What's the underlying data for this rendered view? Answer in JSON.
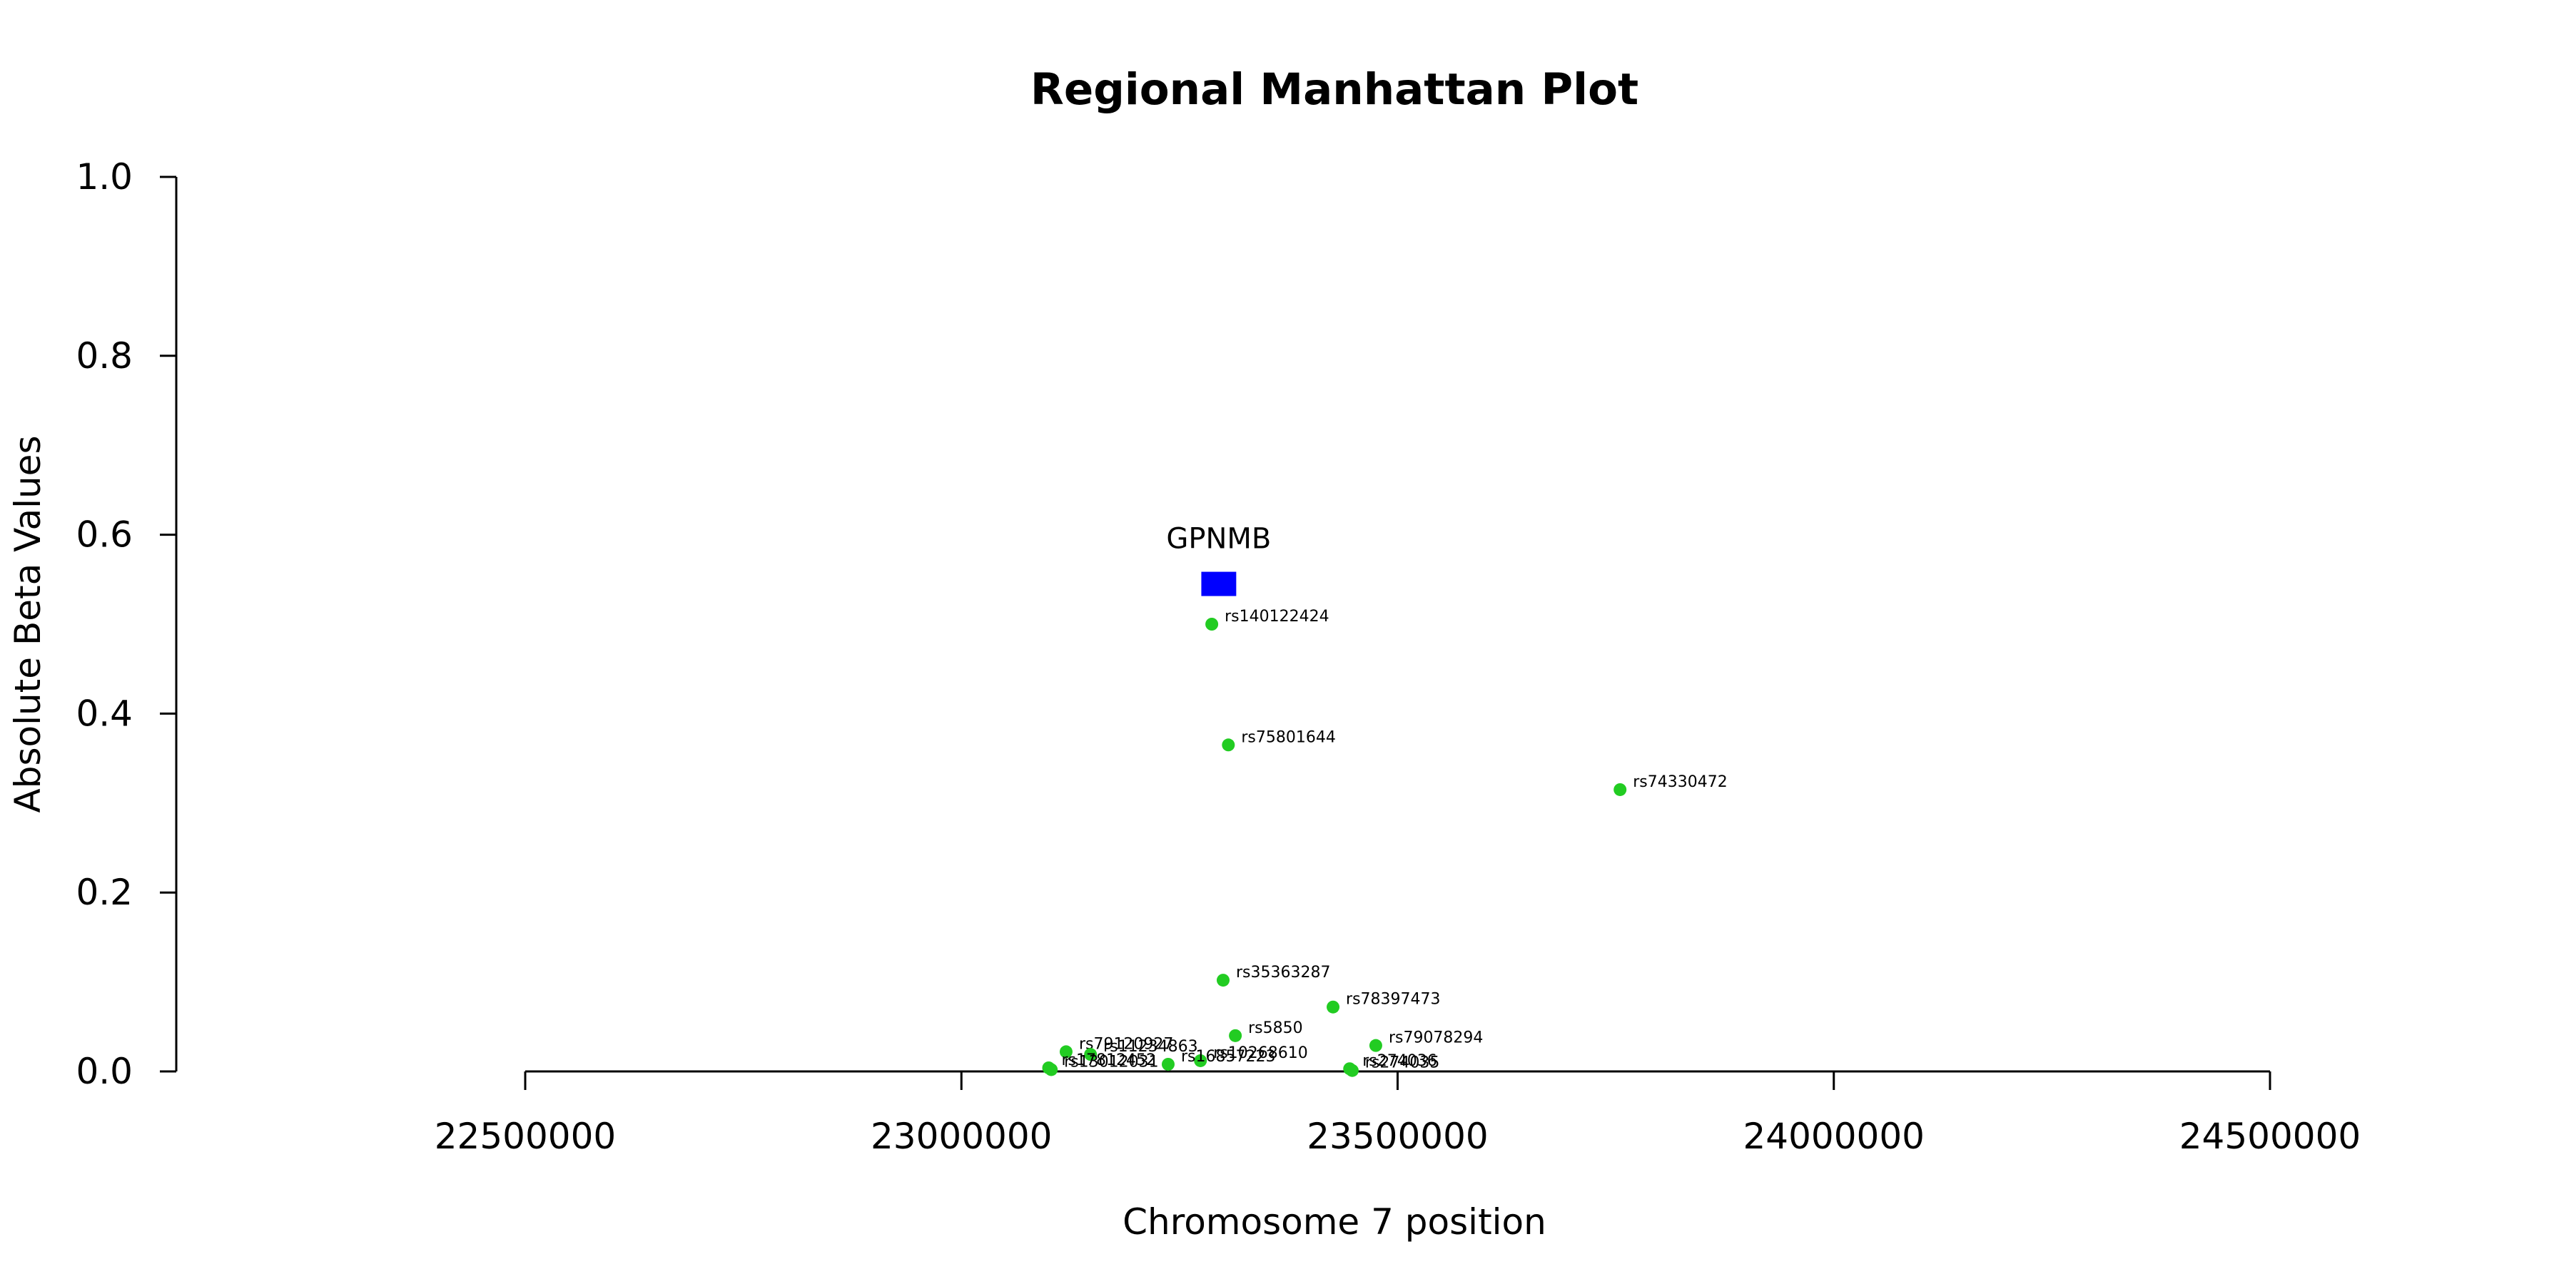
{
  "chart_data": {
    "type": "scatter",
    "title": "Regional Manhattan Plot",
    "xlabel": "Chromosome 7 position",
    "ylabel": "Absolute Beta Values",
    "xlim": [
      22100000,
      24600000
    ],
    "ylim": [
      0,
      1.0
    ],
    "x_ticks": [
      22500000,
      23000000,
      23500000,
      24000000,
      24500000
    ],
    "x_tick_labels": [
      "22500000",
      "23000000",
      "23500000",
      "24000000",
      "24500000"
    ],
    "y_ticks": [
      0.0,
      0.2,
      0.4,
      0.6,
      0.8,
      1.0
    ],
    "y_tick_labels": [
      "0.0",
      "0.2",
      "0.4",
      "0.6",
      "0.8",
      "1.0"
    ],
    "grid": false,
    "point_color": "#22cc22",
    "gene": {
      "name": "GPNMB",
      "start": 23275000,
      "end": 23315000,
      "y": 0.545,
      "color": "#0000ff"
    },
    "points": [
      {
        "x": 23287000,
        "y": 0.5,
        "label": "rs140122424"
      },
      {
        "x": 23306000,
        "y": 0.365,
        "label": "rs75801644"
      },
      {
        "x": 23755000,
        "y": 0.315,
        "label": "rs74330472"
      },
      {
        "x": 23300000,
        "y": 0.102,
        "label": "rs35363287"
      },
      {
        "x": 23426000,
        "y": 0.072,
        "label": "rs78397473"
      },
      {
        "x": 23314000,
        "y": 0.04,
        "label": "rs5850"
      },
      {
        "x": 23475000,
        "y": 0.029,
        "label": "rs79078294"
      },
      {
        "x": 23120000,
        "y": 0.022,
        "label": "rs79120927"
      },
      {
        "x": 23148000,
        "y": 0.019,
        "label": "rs11234863"
      },
      {
        "x": 23274000,
        "y": 0.012,
        "label": "rs10268610"
      },
      {
        "x": 23237000,
        "y": 0.008,
        "label": "rs16857223"
      },
      {
        "x": 23100000,
        "y": 0.004,
        "label": "rs17812452"
      },
      {
        "x": 23103000,
        "y": 0.002,
        "label": "rs13012031"
      },
      {
        "x": 23445000,
        "y": 0.003,
        "label": "rs274036"
      },
      {
        "x": 23448000,
        "y": 0.001,
        "label": "rs274035"
      }
    ]
  }
}
